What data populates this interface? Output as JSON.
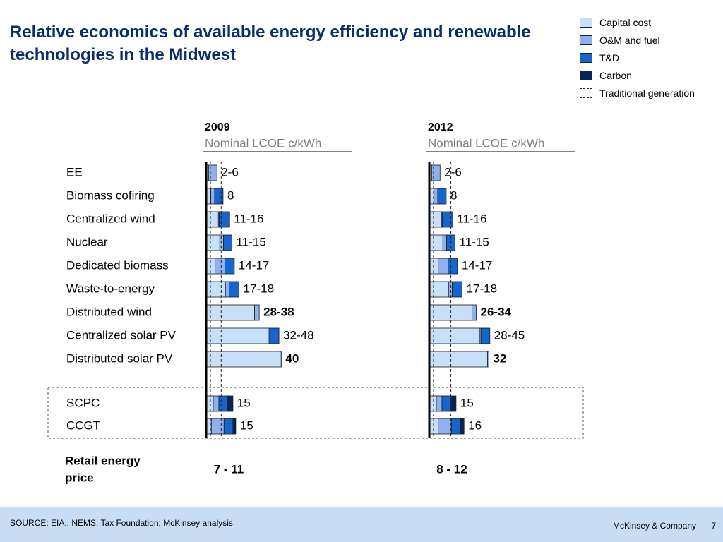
{
  "title": "Relative economics of available energy efficiency and renewable technologies in the Midwest",
  "legend": [
    {
      "label": "Capital cost",
      "color": "#c8dff8",
      "style": "solid"
    },
    {
      "label": "O&M and fuel",
      "color": "#8fb0ef",
      "style": "solid"
    },
    {
      "label": "T&D",
      "color": "#1565cc",
      "style": "solid"
    },
    {
      "label": "Carbon",
      "color": "#0a2458",
      "style": "solid"
    },
    {
      "label": "Traditional generation",
      "color": "",
      "style": "dashed"
    }
  ],
  "colors": {
    "capital": "#c8dff8",
    "om": "#8fb0ef",
    "td": "#1565cc",
    "carbon": "#0a2458",
    "title": "#0b2d6b",
    "footer": "#c8dcf4"
  },
  "chart_data": {
    "type": "bar",
    "orientation": "horizontal",
    "stacked": true,
    "stack_components": [
      "Capital cost",
      "O&M and fuel",
      "T&D",
      "Carbon"
    ],
    "panels": [
      {
        "header": "2009",
        "subheader": "Nominal LCOE c/kWh",
        "retail_price": "7 - 11",
        "reference_lines": [
          0.9,
          3.2
        ],
        "rows": [
          {
            "label": "EE",
            "segments": [
              0.5,
              1.8,
              0,
              0
            ],
            "value_label": "2-6",
            "bold": false,
            "group": "renewable"
          },
          {
            "label": "Biomass cofiring",
            "segments": [
              1.0,
              0.8,
              1.8,
              0
            ],
            "value_label": "8",
            "bold": false,
            "group": "renewable"
          },
          {
            "label": "Centralized wind",
            "segments": [
              2.6,
              0.2,
              2.2,
              0
            ],
            "value_label": "11-16",
            "bold": false,
            "group": "renewable"
          },
          {
            "label": "Nuclear",
            "segments": [
              2.9,
              0.8,
              1.8,
              0
            ],
            "value_label": "11-15",
            "bold": false,
            "group": "renewable"
          },
          {
            "label": "Dedicated biomass",
            "segments": [
              1.9,
              2.1,
              2.0,
              0
            ],
            "value_label": "14-17",
            "bold": false,
            "group": "renewable"
          },
          {
            "label": "Waste-to-energy",
            "segments": [
              4.1,
              0.8,
              2.1,
              0
            ],
            "value_label": "17-18",
            "bold": false,
            "group": "renewable"
          },
          {
            "label": "Distributed wind",
            "segments": [
              10.3,
              1.0,
              0,
              0
            ],
            "value_label": "28-38",
            "bold": true,
            "group": "renewable"
          },
          {
            "label": "Centralized solar PV",
            "segments": [
              13.2,
              0.3,
              2.0,
              0
            ],
            "value_label": "32-48",
            "bold": false,
            "group": "renewable"
          },
          {
            "label": "Distributed solar PV",
            "segments": [
              15.7,
              0.3,
              0,
              0
            ],
            "value_label": "40",
            "bold": true,
            "group": "renewable"
          },
          {
            "label": "SCPC",
            "segments": [
              1.5,
              1.2,
              1.9,
              1.1
            ],
            "value_label": "15",
            "bold": false,
            "group": "traditional"
          },
          {
            "label": "CCGT",
            "segments": [
              1.1,
              2.7,
              1.9,
              0.6
            ],
            "value_label": "15",
            "bold": false,
            "group": "traditional"
          }
        ]
      },
      {
        "header": "2012",
        "subheader": "Nominal LCOE c/kWh",
        "retail_price": "8 - 12",
        "reference_lines": [
          0.9,
          4.6
        ],
        "rows": [
          {
            "label": "EE",
            "segments": [
              0.5,
              1.8,
              0,
              0
            ],
            "value_label": "2-6",
            "bold": false,
            "group": "renewable"
          },
          {
            "label": "Biomass cofiring",
            "segments": [
              1.0,
              0.8,
              1.8,
              0
            ],
            "value_label": "8",
            "bold": false,
            "group": "renewable"
          },
          {
            "label": "Centralized wind",
            "segments": [
              2.6,
              0.2,
              2.2,
              0
            ],
            "value_label": "11-16",
            "bold": false,
            "group": "renewable"
          },
          {
            "label": "Nuclear",
            "segments": [
              2.9,
              0.8,
              1.8,
              0
            ],
            "value_label": "11-15",
            "bold": false,
            "group": "renewable"
          },
          {
            "label": "Dedicated biomass",
            "segments": [
              1.9,
              2.1,
              2.0,
              0
            ],
            "value_label": "14-17",
            "bold": false,
            "group": "renewable"
          },
          {
            "label": "Waste-to-energy",
            "segments": [
              4.1,
              0.8,
              2.1,
              0
            ],
            "value_label": "17-18",
            "bold": false,
            "group": "renewable"
          },
          {
            "label": "Distributed wind",
            "segments": [
              9.1,
              0.9,
              0,
              0
            ],
            "value_label": "26-34",
            "bold": true,
            "group": "renewable"
          },
          {
            "label": "Centralized solar PV",
            "segments": [
              10.7,
              0.3,
              1.9,
              0
            ],
            "value_label": "28-45",
            "bold": false,
            "group": "renewable"
          },
          {
            "label": "Distributed solar PV",
            "segments": [
              12.4,
              0.3,
              0,
              0
            ],
            "value_label": "32",
            "bold": true,
            "group": "renewable"
          },
          {
            "label": "SCPC",
            "segments": [
              1.5,
              1.2,
              1.9,
              1.1
            ],
            "value_label": "15",
            "bold": false,
            "group": "traditional"
          },
          {
            "label": "CCGT",
            "segments": [
              1.9,
              2.8,
              2.0,
              0.7
            ],
            "value_label": "16",
            "bold": false,
            "group": "traditional"
          }
        ]
      }
    ],
    "retail_label": "Retail energy price"
  },
  "footer": {
    "source": "SOURCE: EIA.; NEMS; Tax Foundation; McKinsey analysis",
    "company": "McKinsey & Company",
    "page": "7"
  }
}
